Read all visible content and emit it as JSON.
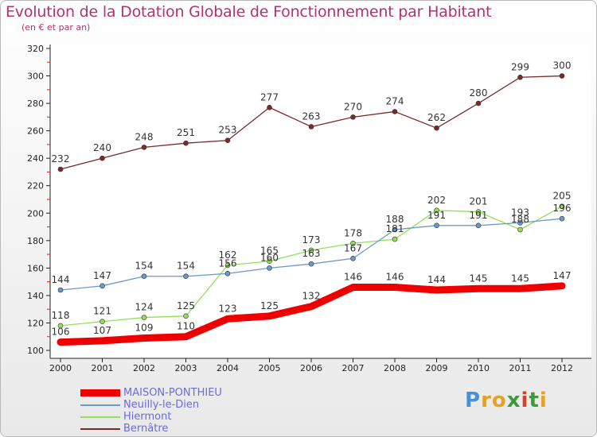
{
  "chart_data": {
    "type": "line",
    "title": "Evolution de la Dotation Globale de Fonctionnement par Habitant",
    "subtitle": "(en € et par an)",
    "x": [
      "2000",
      "2001",
      "2002",
      "2003",
      "2004",
      "2005",
      "2006",
      "2007",
      "2008",
      "2009",
      "2010",
      "2011",
      "2012"
    ],
    "ylim": [
      100,
      320
    ],
    "yticks": [
      100,
      120,
      140,
      160,
      180,
      200,
      220,
      240,
      260,
      280,
      300,
      320
    ],
    "grid": false,
    "legend_position": "bottom-left",
    "series": [
      {
        "name": "MAISON-PONTHIEU",
        "color": "#ee0000",
        "values": [
          106,
          107,
          109,
          110,
          123,
          125,
          132,
          146,
          146,
          144,
          145,
          145,
          147
        ]
      },
      {
        "name": "Neuilly-le-Dien",
        "color": "#6a9ac9",
        "values": [
          144,
          147,
          154,
          154,
          156,
          160,
          163,
          167,
          188,
          191,
          191,
          193,
          196
        ]
      },
      {
        "name": "Hiermont",
        "color": "#92e05a",
        "values": [
          118,
          121,
          124,
          125,
          162,
          165,
          173,
          178,
          181,
          202,
          201,
          188,
          205
        ]
      },
      {
        "name": "Bernâtre",
        "color": "#7a2a2a",
        "values": [
          232,
          240,
          248,
          251,
          253,
          277,
          263,
          270,
          274,
          262,
          280,
          299,
          300
        ]
      }
    ]
  },
  "logo": {
    "text": "Proxiti"
  }
}
